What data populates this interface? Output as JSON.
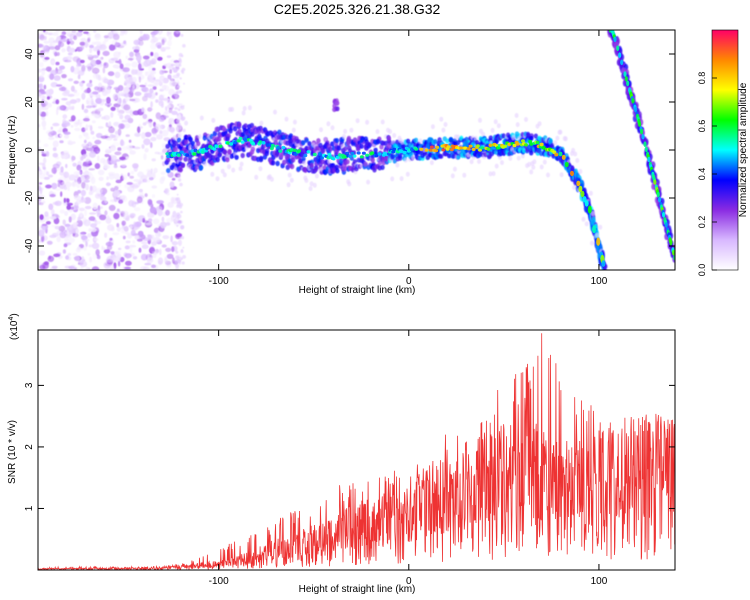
{
  "title": "C2E5.2025.326.21.38.G32",
  "chart_data": [
    {
      "type": "heatmap",
      "xlabel": "Height of straight line (km)",
      "ylabel": "Frequency (Hz)",
      "xlim": [
        -195,
        140
      ],
      "ylim": [
        -50,
        50
      ],
      "x_ticks": [
        -100,
        0,
        100
      ],
      "y_ticks": [
        -40,
        -20,
        0,
        20,
        40
      ],
      "noise_region": {
        "x_range": [
          -195,
          -120
        ],
        "note": "scattered low-amplitude speckle"
      },
      "main_trace": {
        "x": [
          -125,
          -110,
          -100,
          -90,
          -80,
          -70,
          -60,
          -50,
          -40,
          -30,
          -20,
          -10,
          0,
          10,
          20,
          30,
          40,
          50,
          60,
          70,
          80,
          85,
          90,
          95,
          100,
          103
        ],
        "freq": [
          -2,
          -1,
          2,
          4,
          3,
          1,
          -1,
          -2,
          -3,
          -2,
          -2,
          -1,
          0,
          0.5,
          1,
          1,
          1,
          2,
          3,
          2,
          -2,
          -8,
          -15,
          -25,
          -40,
          -50
        ],
        "peak_amplitude": 0.95
      },
      "secondary_trace": {
        "x": [
          107,
          110,
          115,
          120,
          125,
          130,
          135,
          140
        ],
        "freq": [
          50,
          42,
          28,
          15,
          0,
          -15,
          -30,
          -45
        ]
      },
      "blob": {
        "x": -38,
        "freq": 18
      },
      "colorbar": {
        "label": "Normalized spectral amplitude",
        "range": [
          0,
          1
        ],
        "ticks": [
          0.0,
          0.2,
          0.4,
          0.6,
          0.8
        ],
        "tick_labels": [
          "0.0",
          "0.2",
          "0.4",
          "0.6",
          "0.8"
        ],
        "colors": [
          "#ffffff",
          "#d8b8ff",
          "#8a2be2",
          "#0000ff",
          "#00ffff",
          "#00ff00",
          "#ffff00",
          "#ff8800",
          "#ff0066"
        ]
      }
    },
    {
      "type": "line",
      "xlabel": "Height of straight line (km)",
      "ylabel": "SNR (10 * v/v)",
      "scale_label": "(x10",
      "scale_exp": "4",
      "scale_close": ")",
      "xlim": [
        -195,
        140
      ],
      "ylim": [
        0,
        3.9
      ],
      "x_ticks": [
        -100,
        0,
        100
      ],
      "y_ticks": [
        1,
        2,
        3
      ],
      "color": "#ee3333",
      "envelope": {
        "x": [
          -195,
          -130,
          -120,
          -110,
          -100,
          -90,
          -80,
          -70,
          -60,
          -50,
          -40,
          -30,
          -20,
          -10,
          0,
          10,
          20,
          30,
          40,
          50,
          60,
          70,
          80,
          90,
          100,
          110,
          120,
          130,
          140
        ],
        "mean": [
          0.02,
          0.03,
          0.05,
          0.08,
          0.1,
          0.15,
          0.25,
          0.35,
          0.4,
          0.5,
          0.6,
          0.7,
          0.8,
          0.85,
          0.9,
          1.1,
          1.2,
          1.3,
          1.5,
          1.7,
          1.8,
          1.6,
          1.5,
          1.6,
          1.6,
          1.7,
          1.7,
          1.7,
          1.7
        ],
        "max": [
          0.05,
          0.06,
          0.1,
          0.2,
          0.4,
          0.5,
          0.6,
          0.8,
          1.0,
          1.1,
          1.4,
          1.4,
          1.6,
          1.6,
          1.8,
          1.7,
          2.3,
          2.1,
          2.5,
          3.2,
          3.3,
          3.9,
          3.3,
          2.8,
          2.6,
          2.4,
          2.6,
          2.6,
          2.5
        ]
      }
    }
  ]
}
